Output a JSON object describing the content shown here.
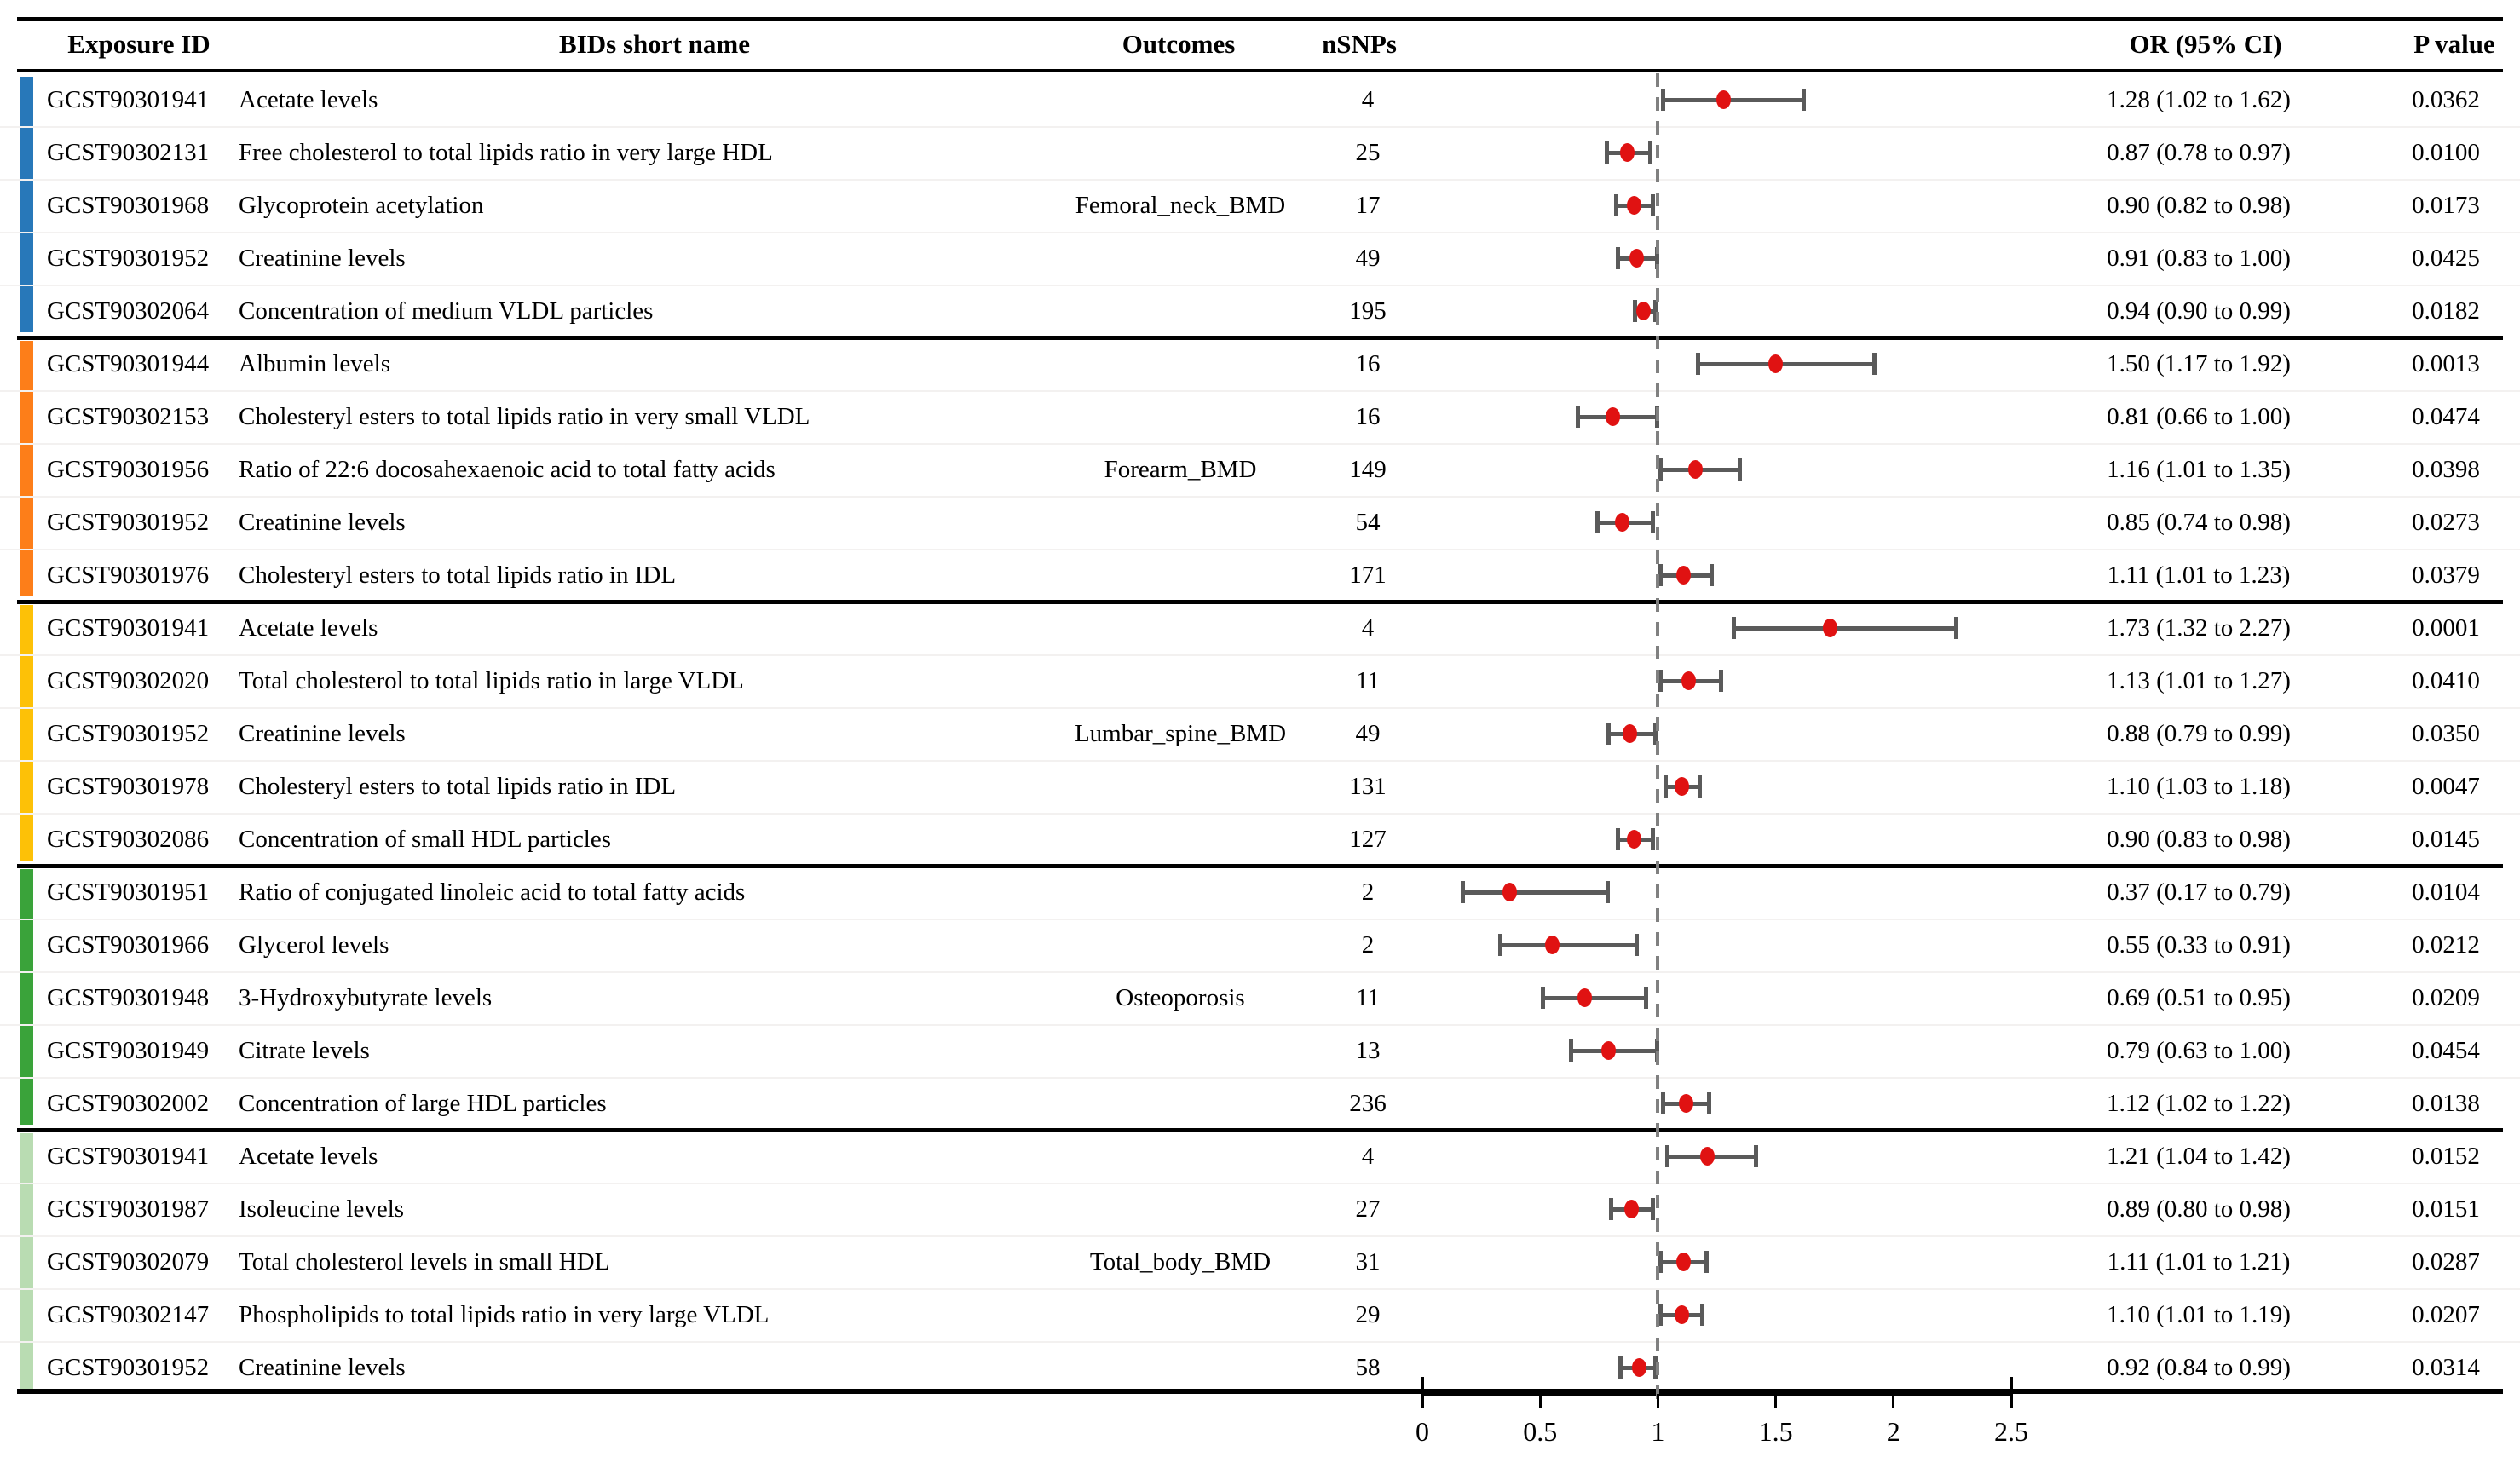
{
  "header": {
    "exposure_id": "Exposure ID",
    "bids_short_name": "BIDs short name",
    "outcomes": "Outcomes",
    "nsnps": "nSNPs",
    "or_ci": "OR (95% CI)",
    "p_value": "P value"
  },
  "colors": {
    "dot": "#e01212",
    "whisker": "#5a5a5a",
    "reference_line": "#808080"
  },
  "chart_data": {
    "type": "scatter",
    "subtype": "forest_plot_with_table",
    "x_axis": {
      "tick_labels": [
        "0",
        "0.5",
        "1",
        "1.5",
        "2",
        "2.5"
      ],
      "tick_values": [
        0,
        0.5,
        1,
        1.5,
        2,
        2.5
      ],
      "range": [
        0,
        2.5
      ],
      "reference_value": 1
    },
    "groups": [
      {
        "outcome": "Femoral_neck_BMD",
        "color": "#2878b9",
        "rows": [
          {
            "id": "GCST90301941",
            "name": "Acetate levels",
            "nsnps": "4",
            "or": 1.28,
            "lo": 1.02,
            "hi": 1.62,
            "or_ci": "1.28 (1.02 to 1.62)",
            "p": "0.0362"
          },
          {
            "id": "GCST90302131",
            "name": "Free cholesterol to total lipids ratio in very large HDL",
            "nsnps": "25",
            "or": 0.87,
            "lo": 0.78,
            "hi": 0.97,
            "or_ci": "0.87 (0.78 to 0.97)",
            "p": "0.0100"
          },
          {
            "id": "GCST90301968",
            "name": "Glycoprotein acetylation",
            "nsnps": "17",
            "or": 0.9,
            "lo": 0.82,
            "hi": 0.98,
            "or_ci": "0.90 (0.82 to 0.98)",
            "p": "0.0173"
          },
          {
            "id": "GCST90301952",
            "name": "Creatinine levels",
            "nsnps": "49",
            "or": 0.91,
            "lo": 0.83,
            "hi": 1.0,
            "or_ci": "0.91 (0.83 to 1.00)",
            "p": "0.0425"
          },
          {
            "id": "GCST90302064",
            "name": "Concentration of medium VLDL particles",
            "nsnps": "195",
            "or": 0.94,
            "lo": 0.9,
            "hi": 0.99,
            "or_ci": "0.94 (0.90 to 0.99)",
            "p": "0.0182"
          }
        ]
      },
      {
        "outcome": "Forearm_BMD",
        "color": "#fd7e19",
        "rows": [
          {
            "id": "GCST90301944",
            "name": "Albumin levels",
            "nsnps": "16",
            "or": 1.5,
            "lo": 1.17,
            "hi": 1.92,
            "or_ci": "1.50 (1.17 to 1.92)",
            "p": "0.0013"
          },
          {
            "id": "GCST90302153",
            "name": "Cholesteryl esters to total lipids ratio in very small VLDL",
            "nsnps": "16",
            "or": 0.81,
            "lo": 0.66,
            "hi": 1.0,
            "or_ci": "0.81 (0.66 to 1.00)",
            "p": "0.0474"
          },
          {
            "id": "GCST90301956",
            "name": "Ratio of 22:6 docosahexaenoic acid to total fatty acids",
            "nsnps": "149",
            "or": 1.16,
            "lo": 1.01,
            "hi": 1.35,
            "or_ci": "1.16 (1.01 to 1.35)",
            "p": "0.0398"
          },
          {
            "id": "GCST90301952",
            "name": "Creatinine levels",
            "nsnps": "54",
            "or": 0.85,
            "lo": 0.74,
            "hi": 0.98,
            "or_ci": "0.85 (0.74 to 0.98)",
            "p": "0.0273"
          },
          {
            "id": "GCST90301976",
            "name": "Cholesteryl esters to total lipids ratio in IDL",
            "nsnps": "171",
            "or": 1.11,
            "lo": 1.01,
            "hi": 1.23,
            "or_ci": "1.11 (1.01 to 1.23)",
            "p": "0.0379"
          }
        ]
      },
      {
        "outcome": "Lumbar_spine_BMD",
        "color": "#fdc107",
        "rows": [
          {
            "id": "GCST90301941",
            "name": "Acetate levels",
            "nsnps": "4",
            "or": 1.73,
            "lo": 1.32,
            "hi": 2.27,
            "or_ci": "1.73 (1.32 to 2.27)",
            "p": "0.0001"
          },
          {
            "id": "GCST90302020",
            "name": "Total cholesterol to total lipids ratio in large VLDL",
            "nsnps": "11",
            "or": 1.13,
            "lo": 1.01,
            "hi": 1.27,
            "or_ci": "1.13 (1.01 to 1.27)",
            "p": "0.0410"
          },
          {
            "id": "GCST90301952",
            "name": "Creatinine levels",
            "nsnps": "49",
            "or": 0.88,
            "lo": 0.79,
            "hi": 0.99,
            "or_ci": "0.88 (0.79 to 0.99)",
            "p": "0.0350"
          },
          {
            "id": "GCST90301978",
            "name": "Cholesteryl esters to total lipids ratio in IDL",
            "nsnps": "131",
            "or": 1.1,
            "lo": 1.03,
            "hi": 1.18,
            "or_ci": "1.10 (1.03 to 1.18)",
            "p": "0.0047"
          },
          {
            "id": "GCST90302086",
            "name": "Concentration of small HDL particles",
            "nsnps": "127",
            "or": 0.9,
            "lo": 0.83,
            "hi": 0.98,
            "or_ci": "0.90 (0.83 to 0.98)",
            "p": "0.0145"
          }
        ]
      },
      {
        "outcome": "Osteoporosis",
        "color": "#3aa33a",
        "rows": [
          {
            "id": "GCST90301951",
            "name": "Ratio of conjugated linoleic acid to total fatty acids",
            "nsnps": "2",
            "or": 0.37,
            "lo": 0.17,
            "hi": 0.79,
            "or_ci": "0.37 (0.17 to 0.79)",
            "p": "0.0104"
          },
          {
            "id": "GCST90301966",
            "name": "Glycerol levels",
            "nsnps": "2",
            "or": 0.55,
            "lo": 0.33,
            "hi": 0.91,
            "or_ci": "0.55 (0.33 to 0.91)",
            "p": "0.0212"
          },
          {
            "id": "GCST90301948",
            "name": "3-Hydroxybutyrate levels",
            "nsnps": "11",
            "or": 0.69,
            "lo": 0.51,
            "hi": 0.95,
            "or_ci": "0.69 (0.51 to 0.95)",
            "p": "0.0209"
          },
          {
            "id": "GCST90301949",
            "name": "Citrate levels",
            "nsnps": "13",
            "or": 0.79,
            "lo": 0.63,
            "hi": 1.0,
            "or_ci": "0.79 (0.63 to 1.00)",
            "p": "0.0454"
          },
          {
            "id": "GCST90302002",
            "name": "Concentration of large HDL particles",
            "nsnps": "236",
            "or": 1.12,
            "lo": 1.02,
            "hi": 1.22,
            "or_ci": "1.12 (1.02 to 1.22)",
            "p": "0.0138"
          }
        ]
      },
      {
        "outcome": "Total_body_BMD",
        "color": "#b9dcb2",
        "rows": [
          {
            "id": "GCST90301941",
            "name": "Acetate levels",
            "nsnps": "4",
            "or": 1.21,
            "lo": 1.04,
            "hi": 1.42,
            "or_ci": "1.21 (1.04 to 1.42)",
            "p": "0.0152"
          },
          {
            "id": "GCST90301987",
            "name": "Isoleucine levels",
            "nsnps": "27",
            "or": 0.89,
            "lo": 0.8,
            "hi": 0.98,
            "or_ci": "0.89 (0.80 to 0.98)",
            "p": "0.0151"
          },
          {
            "id": "GCST90302079",
            "name": "Total cholesterol levels in small HDL",
            "nsnps": "31",
            "or": 1.11,
            "lo": 1.01,
            "hi": 1.21,
            "or_ci": "1.11 (1.01 to 1.21)",
            "p": "0.0287"
          },
          {
            "id": "GCST90302147",
            "name": "Phospholipids to total lipids ratio in very large VLDL",
            "nsnps": "29",
            "or": 1.1,
            "lo": 1.01,
            "hi": 1.19,
            "or_ci": "1.10 (1.01 to 1.19)",
            "p": "0.0207"
          },
          {
            "id": "GCST90301952",
            "name": "Creatinine levels",
            "nsnps": "58",
            "or": 0.92,
            "lo": 0.84,
            "hi": 0.99,
            "or_ci": "0.92 (0.84 to 0.99)",
            "p": "0.0314"
          }
        ]
      }
    ]
  }
}
